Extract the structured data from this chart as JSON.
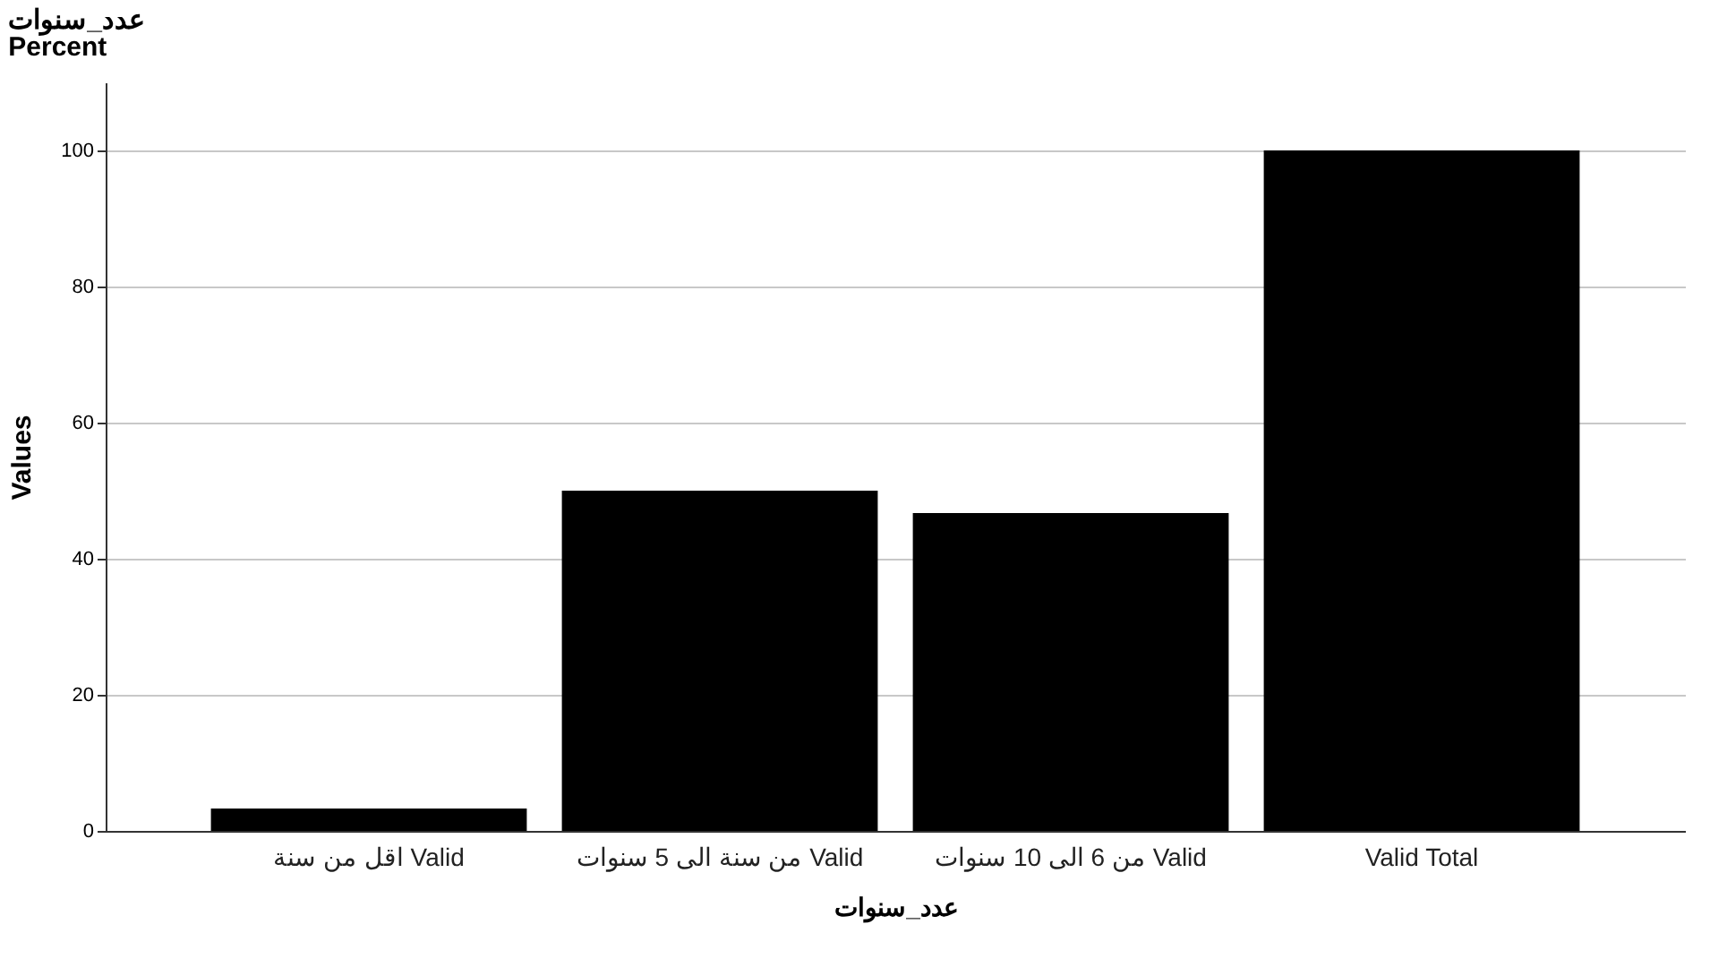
{
  "chart_data": {
    "type": "bar",
    "title": "عدد_سنوات",
    "subtitle": "Percent",
    "xlabel": "عدد_سنوات",
    "ylabel": "Values",
    "categories": [
      "اقل من سنة Valid",
      "من سنة الى 5 سنوات Valid",
      "من 6 الى 10 سنوات Valid",
      "Valid Total"
    ],
    "values": [
      3.3,
      50,
      46.7,
      100
    ],
    "color": "#000000",
    "ylim": [
      0,
      110
    ],
    "yticks": [
      0,
      20,
      40,
      60,
      80,
      100
    ],
    "grid": "y"
  }
}
